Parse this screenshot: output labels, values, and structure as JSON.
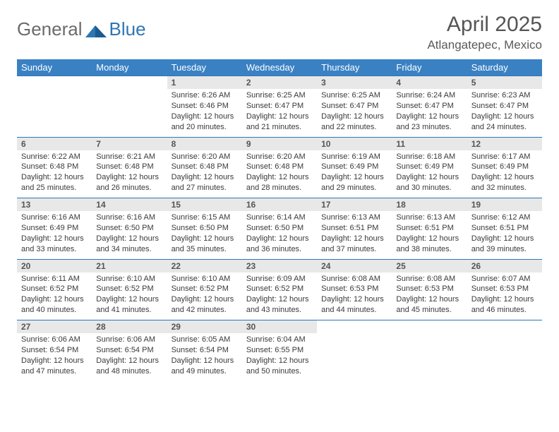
{
  "brand": {
    "word1": "General",
    "word2": "Blue"
  },
  "title": {
    "month": "April 2025",
    "location": "Atlangatepec, Mexico"
  },
  "colors": {
    "header_bg": "#3a81c4",
    "daynum_bg": "#e8e8e8",
    "border": "#2f76b3"
  },
  "day_names": [
    "Sunday",
    "Monday",
    "Tuesday",
    "Wednesday",
    "Thursday",
    "Friday",
    "Saturday"
  ],
  "weeks": [
    {
      "days": [
        {
          "num": "",
          "sunrise": "",
          "sunset": "",
          "daylight": ""
        },
        {
          "num": "",
          "sunrise": "",
          "sunset": "",
          "daylight": ""
        },
        {
          "num": "1",
          "sunrise": "Sunrise: 6:26 AM",
          "sunset": "Sunset: 6:46 PM",
          "daylight": "Daylight: 12 hours and 20 minutes."
        },
        {
          "num": "2",
          "sunrise": "Sunrise: 6:25 AM",
          "sunset": "Sunset: 6:47 PM",
          "daylight": "Daylight: 12 hours and 21 minutes."
        },
        {
          "num": "3",
          "sunrise": "Sunrise: 6:25 AM",
          "sunset": "Sunset: 6:47 PM",
          "daylight": "Daylight: 12 hours and 22 minutes."
        },
        {
          "num": "4",
          "sunrise": "Sunrise: 6:24 AM",
          "sunset": "Sunset: 6:47 PM",
          "daylight": "Daylight: 12 hours and 23 minutes."
        },
        {
          "num": "5",
          "sunrise": "Sunrise: 6:23 AM",
          "sunset": "Sunset: 6:47 PM",
          "daylight": "Daylight: 12 hours and 24 minutes."
        }
      ]
    },
    {
      "days": [
        {
          "num": "6",
          "sunrise": "Sunrise: 6:22 AM",
          "sunset": "Sunset: 6:48 PM",
          "daylight": "Daylight: 12 hours and 25 minutes."
        },
        {
          "num": "7",
          "sunrise": "Sunrise: 6:21 AM",
          "sunset": "Sunset: 6:48 PM",
          "daylight": "Daylight: 12 hours and 26 minutes."
        },
        {
          "num": "8",
          "sunrise": "Sunrise: 6:20 AM",
          "sunset": "Sunset: 6:48 PM",
          "daylight": "Daylight: 12 hours and 27 minutes."
        },
        {
          "num": "9",
          "sunrise": "Sunrise: 6:20 AM",
          "sunset": "Sunset: 6:48 PM",
          "daylight": "Daylight: 12 hours and 28 minutes."
        },
        {
          "num": "10",
          "sunrise": "Sunrise: 6:19 AM",
          "sunset": "Sunset: 6:49 PM",
          "daylight": "Daylight: 12 hours and 29 minutes."
        },
        {
          "num": "11",
          "sunrise": "Sunrise: 6:18 AM",
          "sunset": "Sunset: 6:49 PM",
          "daylight": "Daylight: 12 hours and 30 minutes."
        },
        {
          "num": "12",
          "sunrise": "Sunrise: 6:17 AM",
          "sunset": "Sunset: 6:49 PM",
          "daylight": "Daylight: 12 hours and 32 minutes."
        }
      ]
    },
    {
      "days": [
        {
          "num": "13",
          "sunrise": "Sunrise: 6:16 AM",
          "sunset": "Sunset: 6:49 PM",
          "daylight": "Daylight: 12 hours and 33 minutes."
        },
        {
          "num": "14",
          "sunrise": "Sunrise: 6:16 AM",
          "sunset": "Sunset: 6:50 PM",
          "daylight": "Daylight: 12 hours and 34 minutes."
        },
        {
          "num": "15",
          "sunrise": "Sunrise: 6:15 AM",
          "sunset": "Sunset: 6:50 PM",
          "daylight": "Daylight: 12 hours and 35 minutes."
        },
        {
          "num": "16",
          "sunrise": "Sunrise: 6:14 AM",
          "sunset": "Sunset: 6:50 PM",
          "daylight": "Daylight: 12 hours and 36 minutes."
        },
        {
          "num": "17",
          "sunrise": "Sunrise: 6:13 AM",
          "sunset": "Sunset: 6:51 PM",
          "daylight": "Daylight: 12 hours and 37 minutes."
        },
        {
          "num": "18",
          "sunrise": "Sunrise: 6:13 AM",
          "sunset": "Sunset: 6:51 PM",
          "daylight": "Daylight: 12 hours and 38 minutes."
        },
        {
          "num": "19",
          "sunrise": "Sunrise: 6:12 AM",
          "sunset": "Sunset: 6:51 PM",
          "daylight": "Daylight: 12 hours and 39 minutes."
        }
      ]
    },
    {
      "days": [
        {
          "num": "20",
          "sunrise": "Sunrise: 6:11 AM",
          "sunset": "Sunset: 6:52 PM",
          "daylight": "Daylight: 12 hours and 40 minutes."
        },
        {
          "num": "21",
          "sunrise": "Sunrise: 6:10 AM",
          "sunset": "Sunset: 6:52 PM",
          "daylight": "Daylight: 12 hours and 41 minutes."
        },
        {
          "num": "22",
          "sunrise": "Sunrise: 6:10 AM",
          "sunset": "Sunset: 6:52 PM",
          "daylight": "Daylight: 12 hours and 42 minutes."
        },
        {
          "num": "23",
          "sunrise": "Sunrise: 6:09 AM",
          "sunset": "Sunset: 6:52 PM",
          "daylight": "Daylight: 12 hours and 43 minutes."
        },
        {
          "num": "24",
          "sunrise": "Sunrise: 6:08 AM",
          "sunset": "Sunset: 6:53 PM",
          "daylight": "Daylight: 12 hours and 44 minutes."
        },
        {
          "num": "25",
          "sunrise": "Sunrise: 6:08 AM",
          "sunset": "Sunset: 6:53 PM",
          "daylight": "Daylight: 12 hours and 45 minutes."
        },
        {
          "num": "26",
          "sunrise": "Sunrise: 6:07 AM",
          "sunset": "Sunset: 6:53 PM",
          "daylight": "Daylight: 12 hours and 46 minutes."
        }
      ]
    },
    {
      "days": [
        {
          "num": "27",
          "sunrise": "Sunrise: 6:06 AM",
          "sunset": "Sunset: 6:54 PM",
          "daylight": "Daylight: 12 hours and 47 minutes."
        },
        {
          "num": "28",
          "sunrise": "Sunrise: 6:06 AM",
          "sunset": "Sunset: 6:54 PM",
          "daylight": "Daylight: 12 hours and 48 minutes."
        },
        {
          "num": "29",
          "sunrise": "Sunrise: 6:05 AM",
          "sunset": "Sunset: 6:54 PM",
          "daylight": "Daylight: 12 hours and 49 minutes."
        },
        {
          "num": "30",
          "sunrise": "Sunrise: 6:04 AM",
          "sunset": "Sunset: 6:55 PM",
          "daylight": "Daylight: 12 hours and 50 minutes."
        },
        {
          "num": "",
          "sunrise": "",
          "sunset": "",
          "daylight": ""
        },
        {
          "num": "",
          "sunrise": "",
          "sunset": "",
          "daylight": ""
        },
        {
          "num": "",
          "sunrise": "",
          "sunset": "",
          "daylight": ""
        }
      ]
    }
  ]
}
